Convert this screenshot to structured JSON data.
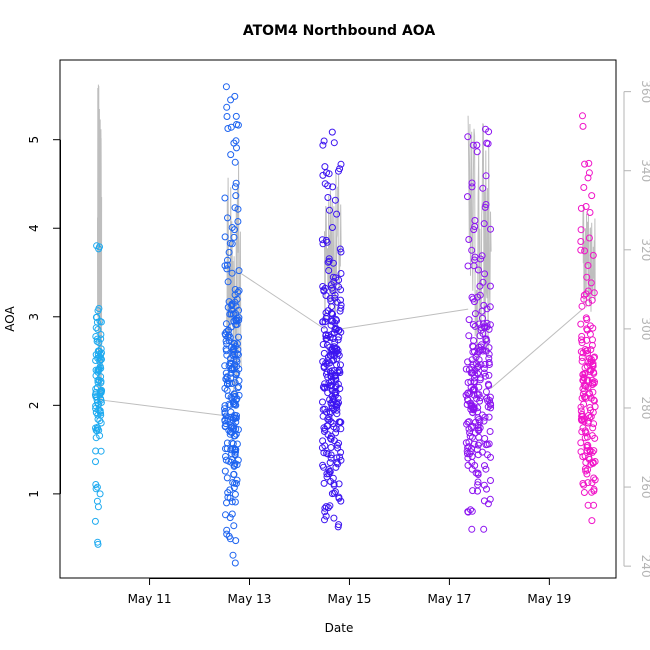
{
  "chart_data": {
    "type": "scatter",
    "title": "ATOM4 Northbound AOA",
    "xlabel": "Date",
    "ylabel": "AOA",
    "y2label": "",
    "xlim": [
      "2023-05-09T05:00",
      "2023-05-20T08:00"
    ],
    "ylim": [
      0.05,
      5.9
    ],
    "y2lim": [
      237,
      368
    ],
    "x_ticks": [
      {
        "value": "2023-05-11",
        "label": "May 11"
      },
      {
        "value": "2023-05-13",
        "label": "May 13"
      },
      {
        "value": "2023-05-15",
        "label": "May 15"
      },
      {
        "value": "2023-05-17",
        "label": "May 17"
      },
      {
        "value": "2023-05-19",
        "label": "May 19"
      }
    ],
    "y_ticks": [
      1,
      2,
      3,
      4,
      5
    ],
    "y2_ticks": [
      240,
      260,
      280,
      300,
      320,
      340,
      360
    ],
    "grid": false,
    "legend": "none",
    "colors": {
      "clusters": [
        "#1eaaf0",
        "#1e64f0",
        "#3c14f0",
        "#8c14f0",
        "#f014c8"
      ],
      "secondary_line": "#bebebe",
      "right_axis": "#b4b4b4"
    },
    "point_clusters": [
      {
        "start": "2023-05-09T22:00",
        "end": "2023-05-10T01:00",
        "center": 2.3,
        "spread": 0.55,
        "min": 0.3,
        "max": 3.95,
        "count": 100
      },
      {
        "start": "2023-05-12T12:00",
        "end": "2023-05-12T19:00",
        "center": 2.3,
        "spread": 1.15,
        "min": 0.2,
        "max": 5.6,
        "count": 240
      },
      {
        "start": "2023-05-14T11:00",
        "end": "2023-05-14T20:00",
        "center": 2.3,
        "spread": 1.1,
        "min": 0.55,
        "max": 5.35,
        "count": 260
      },
      {
        "start": "2023-05-17T08:00",
        "end": "2023-05-17T20:00",
        "center": 2.1,
        "spread": 0.85,
        "min": 0.6,
        "max": 5.15,
        "count": 230
      },
      {
        "start": "2023-05-19T15:00",
        "end": "2023-05-19T22:00",
        "center": 2.0,
        "spread": 0.8,
        "min": 0.6,
        "max": 5.35,
        "count": 170
      }
    ],
    "secondary_series": {
      "axis": "right",
      "segments": [
        {
          "start": "2023-05-09T23:00",
          "end": "2023-05-10T01:00",
          "min": 278,
          "max": 362
        },
        {
          "start": "2023-05-12T13:00",
          "end": "2023-05-12T20:00",
          "min": 277,
          "max": 347
        },
        {
          "start": "2023-05-14T12:00",
          "end": "2023-05-14T20:00",
          "min": 300,
          "max": 340
        },
        {
          "start": "2023-05-17T09:00",
          "end": "2023-05-17T20:00",
          "min": 285,
          "max": 358
        },
        {
          "start": "2023-05-19T16:00",
          "end": "2023-05-19T22:00",
          "min": 304,
          "max": 332
        }
      ],
      "connectors": [
        {
          "from": {
            "x": "2023-05-10T01:00",
            "y": 282
          },
          "to": {
            "x": "2023-05-12T13:00",
            "y": 278
          }
        },
        {
          "from": {
            "x": "2023-05-12T20:00",
            "y": 314
          },
          "to": {
            "x": "2023-05-14T12:00",
            "y": 300
          }
        },
        {
          "from": {
            "x": "2023-05-14T20:00",
            "y": 300
          },
          "to": {
            "x": "2023-05-17T09:00",
            "y": 305
          }
        },
        {
          "from": {
            "x": "2023-05-17T20:00",
            "y": 285
          },
          "to": {
            "x": "2023-05-19T16:00",
            "y": 305
          }
        }
      ]
    }
  }
}
